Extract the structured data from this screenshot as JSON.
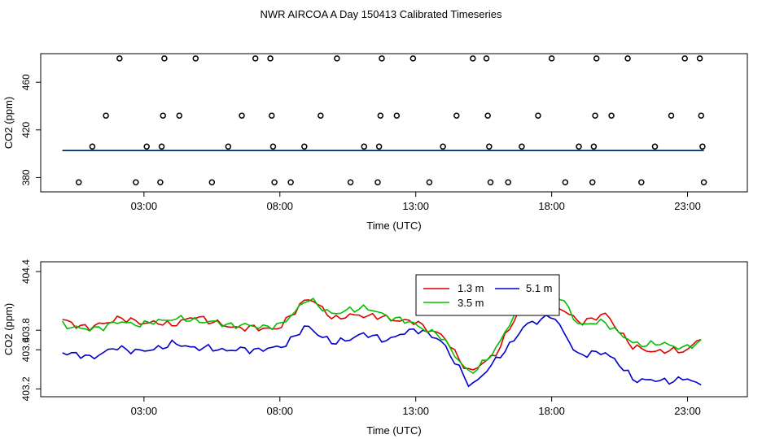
{
  "title": "NWR AIRCOA A  Day 150413  Calibrated Timeseries",
  "colors": {
    "s13": "#e00000",
    "s35": "#00c000",
    "s51": "#0000c8",
    "axis": "#000000"
  },
  "chart_data": [
    {
      "type": "scatter+line",
      "xlabel": "Time (UTC)",
      "ylabel": "CO2 (ppm)",
      "xlim": [
        -0.8,
        25.2
      ],
      "ylim": [
        368,
        484
      ],
      "xticks": [
        3,
        8,
        13,
        18,
        23
      ],
      "xtick_labels": [
        "03:00",
        "08:00",
        "13:00",
        "18:00",
        "23:00"
      ],
      "yticks": [
        380,
        420,
        460
      ],
      "ytick_labels": [
        "380",
        "420",
        "460"
      ],
      "levels": [
        376,
        404,
        432,
        480,
        406
      ],
      "points": [
        [
          0.6,
          376
        ],
        [
          1.1,
          406
        ],
        [
          1.6,
          432
        ],
        [
          2.1,
          480
        ],
        [
          2.7,
          376
        ],
        [
          3.1,
          406
        ],
        [
          3.6,
          376
        ],
        [
          3.65,
          406
        ],
        [
          3.7,
          432
        ],
        [
          3.75,
          480
        ],
        [
          4.3,
          432
        ],
        [
          4.9,
          480
        ],
        [
          5.5,
          376
        ],
        [
          6.1,
          406
        ],
        [
          6.6,
          432
        ],
        [
          7.1,
          480
        ],
        [
          7.65,
          480
        ],
        [
          7.7,
          432
        ],
        [
          7.75,
          406
        ],
        [
          7.8,
          376
        ],
        [
          8.4,
          376
        ],
        [
          8.9,
          406
        ],
        [
          9.5,
          432
        ],
        [
          10.1,
          480
        ],
        [
          10.6,
          376
        ],
        [
          11.1,
          406
        ],
        [
          11.6,
          376
        ],
        [
          11.65,
          406
        ],
        [
          11.7,
          432
        ],
        [
          11.75,
          480
        ],
        [
          12.3,
          432
        ],
        [
          12.9,
          480
        ],
        [
          13.5,
          376
        ],
        [
          14.0,
          406
        ],
        [
          14.5,
          432
        ],
        [
          15.1,
          480
        ],
        [
          15.6,
          480
        ],
        [
          15.65,
          432
        ],
        [
          15.7,
          406
        ],
        [
          15.75,
          376
        ],
        [
          16.4,
          376
        ],
        [
          16.9,
          406
        ],
        [
          17.5,
          432
        ],
        [
          18.0,
          480
        ],
        [
          18.5,
          376
        ],
        [
          19.0,
          406
        ],
        [
          19.5,
          376
        ],
        [
          19.55,
          406
        ],
        [
          19.6,
          432
        ],
        [
          19.65,
          480
        ],
        [
          20.2,
          432
        ],
        [
          20.8,
          480
        ],
        [
          21.3,
          376
        ],
        [
          21.8,
          406
        ],
        [
          22.4,
          432
        ],
        [
          22.9,
          480
        ],
        [
          23.45,
          480
        ],
        [
          23.5,
          432
        ],
        [
          23.55,
          406
        ],
        [
          23.6,
          376
        ]
      ],
      "series": [
        {
          "name": "3.5 m",
          "color": "#00c000",
          "constant": 402.8
        },
        {
          "name": "5.1 m",
          "color": "#0000c8",
          "constant": 402.6
        }
      ]
    },
    {
      "type": "line",
      "xlabel": "Time (UTC)",
      "ylabel": "CO2 (ppm)",
      "xlim": [
        -0.8,
        25.2
      ],
      "ylim": [
        403.12,
        404.5
      ],
      "xticks": [
        3,
        8,
        13,
        18,
        23
      ],
      "xtick_labels": [
        "03:00",
        "08:00",
        "13:00",
        "18:00",
        "23:00"
      ],
      "yticks": [
        403.2,
        403.6,
        403.8,
        404.4
      ],
      "ytick_labels": [
        "403.2",
        "403.6",
        "403.8",
        "404.4"
      ],
      "x": [
        0.0,
        1.0,
        2.0,
        3.0,
        4.0,
        5.0,
        6.0,
        7.0,
        8.0,
        9.0,
        10.0,
        11.0,
        12.0,
        13.0,
        14.0,
        15.0,
        16.0,
        17.0,
        18.0,
        19.0,
        20.0,
        21.0,
        22.0,
        23.0,
        23.5
      ],
      "legend": {
        "placement": "top-center",
        "entries": [
          "1.3 m",
          "3.5 m",
          "5.1 m"
        ]
      },
      "series": [
        {
          "name": "1.3 m",
          "color": "#e00000",
          "values": [
            403.9,
            403.82,
            403.92,
            403.88,
            403.86,
            403.94,
            403.84,
            403.82,
            403.82,
            404.14,
            403.92,
            403.96,
            403.92,
            403.88,
            403.74,
            403.36,
            403.58,
            404.1,
            404.1,
            403.88,
            403.96,
            403.62,
            403.58,
            403.6,
            403.72
          ]
        },
        {
          "name": "3.5 m",
          "color": "#00c000",
          "values": [
            403.86,
            403.8,
            403.88,
            403.86,
            403.92,
            403.9,
            403.86,
            403.84,
            403.84,
            404.12,
            403.96,
            404.04,
            403.94,
            403.86,
            403.72,
            403.34,
            403.62,
            404.16,
            404.26,
            403.86,
            403.88,
            403.66,
            403.66,
            403.62,
            403.68
          ]
        },
        {
          "name": "5.1 m",
          "color": "#0000c8",
          "values": [
            403.58,
            403.52,
            403.62,
            403.58,
            403.66,
            403.62,
            403.6,
            403.6,
            403.62,
            403.84,
            403.66,
            403.76,
            403.7,
            403.82,
            403.68,
            403.22,
            403.5,
            403.84,
            403.96,
            403.54,
            403.58,
            403.3,
            403.28,
            403.3,
            403.24
          ]
        }
      ]
    }
  ]
}
